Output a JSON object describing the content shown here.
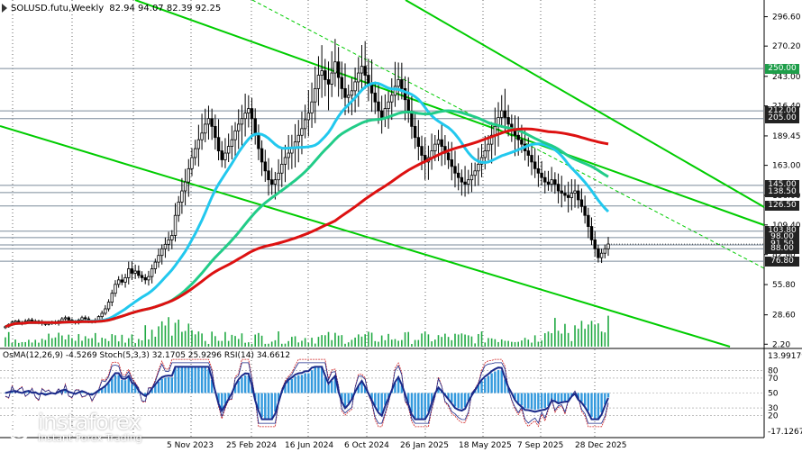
{
  "header": {
    "symbol_timeframe": "SOLUSD.futu,Weekly",
    "ohlc": "82.94 94.07 82.39 92.25"
  },
  "indicators_label": "OsMA(12,26,9) -4.5269  Stoch(5,3,3) 32.1705 25.9296  RSI(14) 34.6612",
  "logo": {
    "name": "instaforex",
    "tagline": "Instant Forex Trading"
  },
  "colors": {
    "bg": "#ffffff",
    "candle": "#000000",
    "ma_fast": "#22c8ee",
    "ma_mid": "#22cc88",
    "ma_slow": "#dd1111",
    "channel": "#00cc00",
    "level_line": "#7a8a9a",
    "osma": "#3399dd",
    "stoch_main": "#1a2a8a",
    "stoch_signal": "#d02020",
    "rsi": "#1a2a8a"
  },
  "chart_data": {
    "type": "candlestick",
    "price_axis_ticks": [
      "296.60",
      "270.20",
      "243.00",
      "216.40",
      "189.45",
      "163.00",
      "136.00",
      "109.40",
      "82.80",
      "55.80",
      "28.60",
      "2.20"
    ],
    "x_tick_labels": [
      "5 Nov 2023",
      "25 Feb 2024",
      "16 Jun 2024",
      "6 Oct 2024",
      "26 Jan 2025",
      "18 May 2025",
      "7 Sep 2025",
      "28 Dec 2025"
    ],
    "price_levels": [
      {
        "label": "250.00",
        "color": "green"
      },
      {
        "label": "212.00",
        "color": "dark"
      },
      {
        "label": "205.00",
        "color": "dark"
      },
      {
        "label": "145.00",
        "color": "dark"
      },
      {
        "label": "138.50",
        "color": "dark"
      },
      {
        "label": "126.50",
        "color": "dark"
      },
      {
        "label": "103.80",
        "color": "dark"
      },
      {
        "label": "98.00",
        "color": "dark"
      },
      {
        "label": "91.50",
        "color": "dark"
      },
      {
        "label": "88.00",
        "color": "dark"
      },
      {
        "label": "76.80",
        "color": "dark"
      }
    ],
    "indicator_axis_ticks": [
      "13.99179",
      "80",
      "70",
      "50",
      "30",
      "20",
      "-17.1267"
    ],
    "closes": [
      18,
      20,
      22,
      23,
      22,
      21,
      23,
      24,
      22,
      23,
      21,
      22,
      20,
      21,
      22,
      21,
      23,
      25,
      26,
      24,
      23,
      22,
      24,
      26,
      25,
      23,
      22,
      24,
      27,
      30,
      34,
      40,
      48,
      56,
      60,
      58,
      62,
      70,
      66,
      68,
      64,
      62,
      60,
      63,
      70,
      76,
      82,
      88,
      92,
      96,
      100,
      118,
      130,
      140,
      148,
      160,
      170,
      178,
      186,
      192,
      200,
      205,
      198,
      188,
      176,
      168,
      174,
      180,
      186,
      194,
      200,
      205,
      210,
      214,
      205,
      190,
      178,
      166,
      158,
      150,
      146,
      150,
      156,
      164,
      170,
      174,
      178,
      184,
      190,
      196,
      204,
      210,
      220,
      232,
      244,
      248,
      240,
      236,
      246,
      256,
      242,
      232,
      224,
      226,
      230,
      238,
      246,
      252,
      244,
      236,
      228,
      220,
      212,
      206,
      214,
      220,
      226,
      234,
      240,
      232,
      222,
      210,
      198,
      188,
      180,
      172,
      166,
      170,
      176,
      182,
      186,
      180,
      174,
      168,
      162,
      156,
      152,
      148,
      146,
      150,
      154,
      158,
      164,
      170,
      176,
      182,
      190,
      198,
      206,
      212,
      206,
      200,
      196,
      190,
      186,
      182,
      176,
      172,
      166,
      160,
      156,
      152,
      148,
      146,
      150,
      146,
      140,
      138,
      136,
      134,
      138,
      140,
      132,
      126,
      118,
      108,
      96,
      88,
      80,
      84,
      88,
      92.25
    ]
  }
}
